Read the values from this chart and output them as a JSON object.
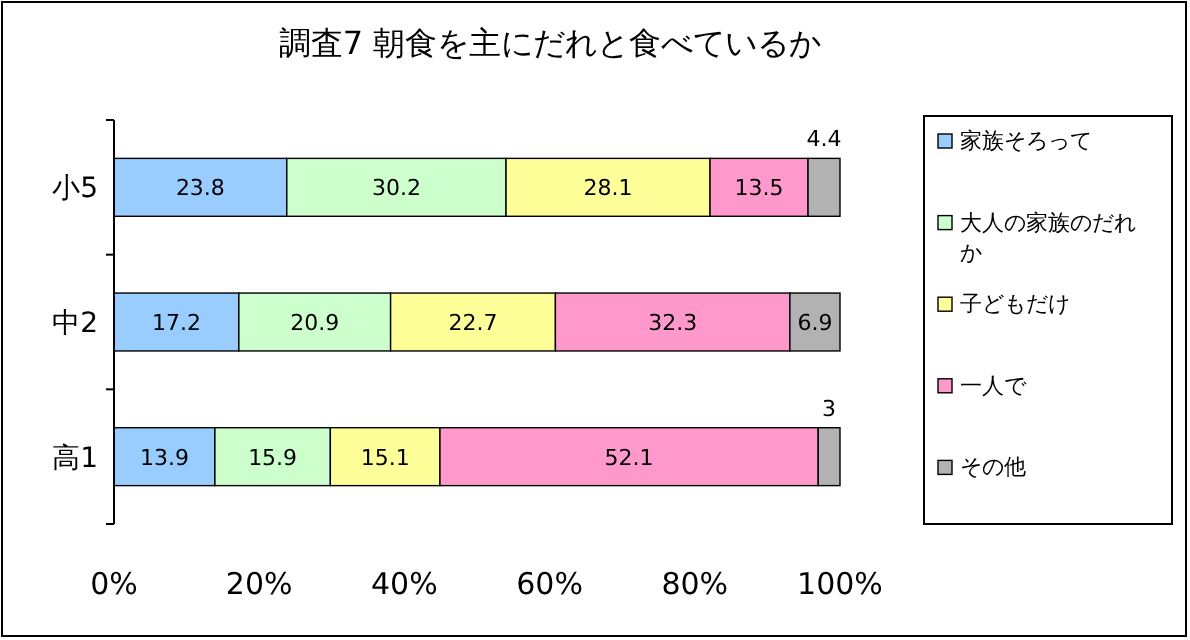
{
  "chart_data": {
    "type": "bar",
    "orientation": "horizontal",
    "stacked": true,
    "title": "調査7  朝食を主にだれと食べているか",
    "categories": [
      "小5",
      "中2",
      "高1"
    ],
    "series": [
      {
        "name": "家族そろって",
        "color": "#99ccff",
        "values": [
          23.8,
          17.2,
          13.9
        ]
      },
      {
        "name": "大人の家族のだれか",
        "color": "#ccffcc",
        "values": [
          30.2,
          20.9,
          15.9
        ]
      },
      {
        "name": "子どもだけ",
        "color": "#ffff99",
        "values": [
          28.1,
          22.7,
          15.1
        ]
      },
      {
        "name": "一人で",
        "color": "#ff99cc",
        "values": [
          13.5,
          32.3,
          52.1
        ]
      },
      {
        "name": "その他",
        "color": "#b2b2b2",
        "values": [
          4.4,
          6.9,
          3
        ]
      }
    ],
    "xlim": [
      0,
      100
    ],
    "xticks": [
      {
        "value": 0,
        "label": "0%"
      },
      {
        "value": 20,
        "label": "20%"
      },
      {
        "value": 40,
        "label": "40%"
      },
      {
        "value": 60,
        "label": "60%"
      },
      {
        "value": 80,
        "label": "80%"
      },
      {
        "value": 100,
        "label": "100%"
      }
    ],
    "data_labels": true,
    "legend": "right",
    "grid": false
  }
}
